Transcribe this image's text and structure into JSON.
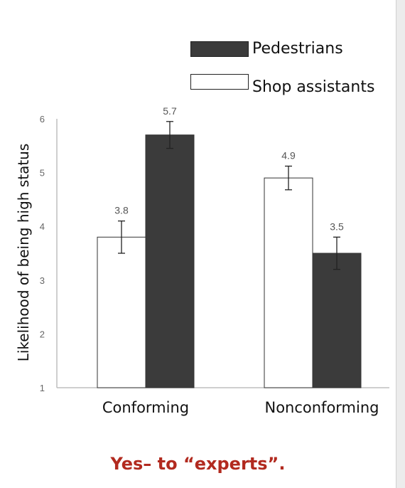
{
  "chart_data": {
    "type": "bar",
    "categories": [
      "Conforming",
      "Nonconforming"
    ],
    "series": [
      {
        "name": "Shop assistants",
        "values": [
          3.8,
          4.9
        ],
        "errors": [
          0.3,
          0.22
        ],
        "color": "#ffffff"
      },
      {
        "name": "Pedestrians",
        "values": [
          5.7,
          3.5
        ],
        "errors": [
          0.25,
          0.3
        ],
        "color": "#3b3b3b"
      }
    ],
    "data_labels": [
      [
        "3.8",
        "4.9"
      ],
      [
        "5.7",
        "3.5"
      ]
    ],
    "ylabel": "Likelihood of being high status",
    "ylim": [
      1,
      6
    ],
    "yticks": [
      "1",
      "2",
      "3",
      "4",
      "5",
      "6"
    ],
    "legend": [
      "Pedestrians",
      "Shop assistants"
    ],
    "legend_position": "top-right",
    "grid": false
  },
  "caption": "Yes– to “experts”."
}
